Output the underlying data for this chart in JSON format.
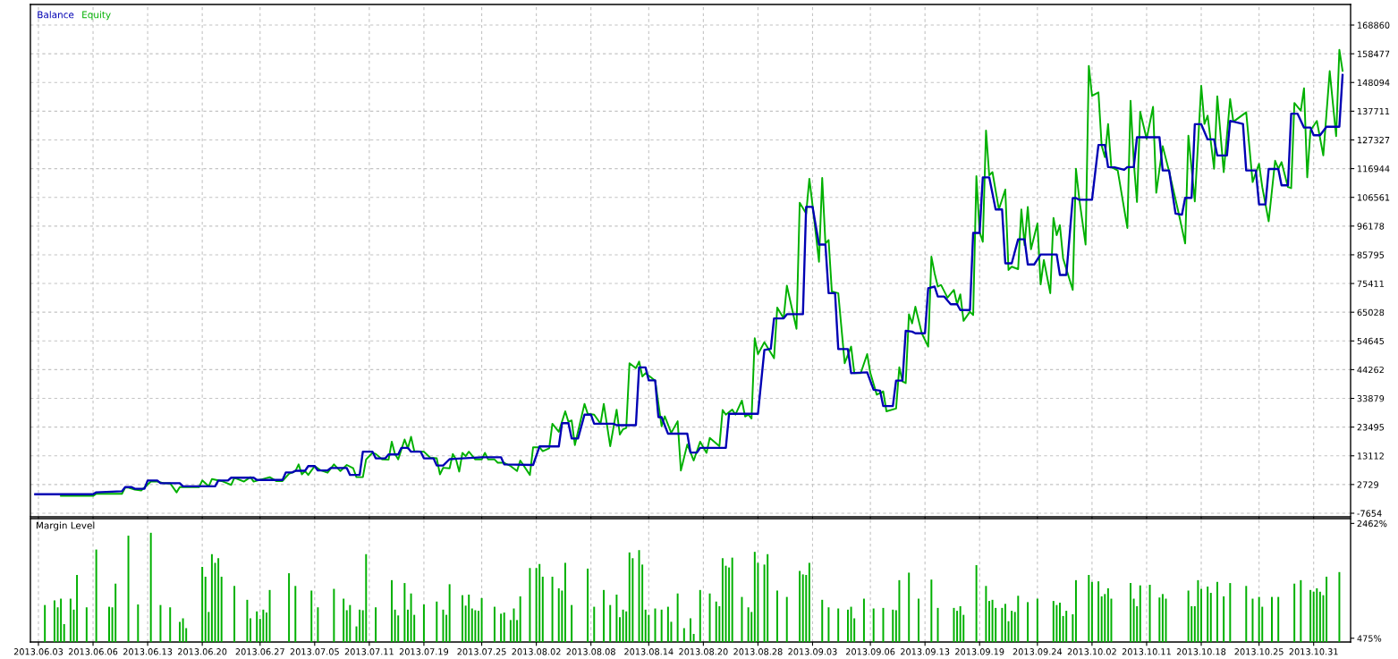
{
  "chart_data": [
    {
      "type": "line",
      "legend": "top left",
      "grid": true,
      "tick_labels": "y",
      "categories": [
        null,
        null,
        "2013.06.03",
        null,
        null,
        null,
        null,
        null,
        null,
        null,
        null,
        null,
        null,
        null,
        null,
        null,
        null,
        null,
        null,
        "2013.06.06",
        null,
        null,
        null,
        null,
        null,
        null,
        null,
        null,
        null,
        null,
        null,
        null,
        null,
        null,
        null,
        null,
        "2013.06.13",
        null,
        null,
        null,
        null,
        null,
        null,
        null,
        null,
        null,
        null,
        null,
        null,
        null,
        null,
        null,
        null,
        "2013.06.20",
        null,
        null,
        null,
        null,
        null,
        null,
        null,
        null,
        null,
        null,
        null,
        null,
        null,
        null,
        null,
        null,
        null,
        "2013.06.27",
        null,
        null,
        null,
        null,
        null,
        null,
        null,
        null,
        null,
        null,
        null,
        null,
        null,
        null,
        null,
        null,
        "2013.07.05",
        null,
        null,
        null,
        null,
        null,
        null,
        null,
        null,
        null,
        null,
        null,
        null,
        null,
        null,
        null,
        null,
        "2013.07.11",
        null,
        null,
        null,
        null,
        null,
        null,
        null,
        null,
        null,
        null,
        null,
        null,
        null,
        null,
        null,
        null,
        "2013.07.19",
        null,
        null,
        null,
        null,
        null,
        null,
        null,
        null,
        null,
        null,
        null,
        null,
        null,
        null,
        null,
        null,
        null,
        "2013.07.25",
        null,
        null,
        null,
        null,
        null,
        null,
        null,
        null,
        null,
        null,
        null,
        null,
        null,
        null,
        null,
        null,
        "2013.08.02",
        null,
        null,
        null,
        null,
        null,
        null,
        null,
        null,
        null,
        null,
        null,
        null,
        null,
        null,
        null,
        null,
        "2013.08.08",
        null,
        null,
        null,
        null,
        null,
        null,
        null,
        null,
        null,
        null,
        null,
        null,
        null,
        null,
        null,
        null,
        null,
        "2013.08.14",
        null,
        null,
        null,
        null,
        null,
        null,
        null,
        null,
        null,
        null,
        null,
        null,
        null,
        null,
        null,
        null,
        "2013.08.20",
        null,
        null,
        null,
        null,
        null,
        null,
        null,
        null,
        null,
        null,
        null,
        null,
        null,
        null,
        null,
        null,
        "2013.08.28",
        null,
        null,
        null,
        null,
        null,
        null,
        null,
        null,
        null,
        null,
        null,
        null,
        null,
        null,
        null,
        null,
        "2013.09.03",
        null,
        null,
        null,
        null,
        null,
        null,
        null,
        null,
        null,
        null,
        null,
        null,
        null,
        null,
        null,
        null,
        null,
        "2013.09.06",
        null,
        null,
        null,
        null,
        null,
        null,
        null,
        null,
        null,
        null,
        null,
        null,
        null,
        null,
        null,
        null,
        "2013.09.13",
        null,
        null,
        null,
        null,
        null,
        null,
        null,
        null,
        null,
        null,
        null,
        null,
        null,
        null,
        null,
        null,
        "2013.09.19",
        null,
        null,
        null,
        null,
        null,
        null,
        null,
        null,
        null,
        null,
        null,
        null,
        null,
        null,
        null,
        null,
        null,
        "2013.09.24",
        null,
        null,
        null,
        null,
        null,
        null,
        null,
        null,
        null,
        null,
        null,
        null,
        null,
        null,
        null,
        null,
        "2013.10.02",
        null,
        null,
        null,
        null,
        null,
        null,
        null,
        null,
        null,
        null,
        null,
        null,
        null,
        null,
        null,
        null,
        "2013.10.11",
        null,
        null,
        null,
        null,
        null,
        null,
        null,
        null,
        null,
        null,
        null,
        null,
        null,
        null,
        null,
        null,
        "2013.10.18",
        null,
        null,
        null,
        null,
        null,
        null,
        null,
        null,
        null,
        null,
        null,
        null,
        null,
        null,
        null,
        null,
        null,
        "2013.10.25",
        null,
        null,
        null,
        null,
        null,
        null,
        null,
        null,
        null,
        null,
        null,
        null,
        null,
        null,
        null,
        null,
        "2013.10.31",
        null,
        null,
        null,
        null,
        null,
        null,
        null,
        null,
        null,
        null,
        null
      ],
      "ylim": [
        -8950,
        176300
      ],
      "yticks": [
        -7654,
        2729,
        13112,
        23495,
        33879,
        44262,
        54645,
        65028,
        75411,
        85795,
        96178,
        106561,
        116944,
        127327,
        137711,
        148094,
        158477,
        168860
      ],
      "series": [
        {
          "name": "Balance",
          "color": "#0000b4",
          "values": [
            null,
            -800,
            null,
            null,
            null,
            null,
            null,
            null,
            null,
            null,
            null,
            null,
            null,
            null,
            null,
            null,
            null,
            null,
            null,
            -800,
            -100,
            null,
            null,
            null,
            null,
            null,
            null,
            null,
            300,
            1800,
            null,
            1800,
            1200,
            null,
            null,
            1200,
            4200,
            null,
            null,
            4200,
            3200,
            null,
            null,
            null,
            null,
            null,
            3200,
            2100,
            null,
            null,
            null,
            null,
            null,
            null,
            null,
            null,
            null,
            2100,
            4200,
            null,
            null,
            4200,
            5200,
            null,
            null,
            null,
            null,
            null,
            null,
            5200,
            4400,
            null,
            null,
            null,
            null,
            null,
            null,
            null,
            4400,
            7100,
            null,
            7100,
            7700,
            null,
            null,
            7700,
            9400,
            null,
            9400,
            7800,
            null,
            null,
            7800,
            8700,
            null,
            null,
            null,
            null,
            8700,
            6200,
            null,
            null,
            6200,
            14600,
            null,
            null,
            14600,
            12200,
            null,
            null,
            12200,
            13600,
            null,
            null,
            13600,
            16000,
            null,
            16000,
            14600,
            null,
            null,
            14600,
            12200,
            null,
            null,
            12200,
            9600,
            null,
            9600,
            null,
            11900,
            null,
            null,
            null,
            null,
            null,
            null,
            null,
            null,
            null,
            12600,
            null,
            null,
            null,
            null,
            null,
            12600,
            10000,
            null,
            null,
            null,
            null,
            null,
            null,
            null,
            null,
            9800,
            null,
            16500,
            null,
            null,
            null,
            null,
            null,
            16500,
            24900,
            null,
            24900,
            19400,
            null,
            19400,
            null,
            28000,
            null,
            28000,
            24700,
            null,
            null,
            null,
            null,
            null,
            24700,
            24200,
            null,
            null,
            null,
            null,
            null,
            24200,
            45100,
            null,
            45100,
            40400,
            null,
            40400,
            27100,
            27100,
            null,
            21100,
            null,
            null,
            null,
            null,
            null,
            21100,
            14300,
            null,
            14300,
            16000,
            null,
            null,
            null,
            null,
            null,
            null,
            null,
            16000,
            28300,
            null,
            null,
            null,
            null,
            null,
            null,
            null,
            null,
            28300,
            null,
            51400,
            null,
            51800,
            62800,
            null,
            null,
            62800,
            64300,
            null,
            null,
            null,
            null,
            64300,
            103100,
            null,
            103100,
            null,
            89500,
            null,
            89500,
            71900,
            null,
            71900,
            51700,
            null,
            null,
            51700,
            43000,
            null,
            null,
            null,
            null,
            43300,
            null,
            37000,
            null,
            36700,
            31100,
            null,
            null,
            31100,
            40300,
            null,
            40300,
            58300,
            null,
            58000,
            57400,
            null,
            null,
            57400,
            73700,
            null,
            74300,
            70700,
            null,
            70700,
            null,
            67900,
            null,
            67900,
            65800,
            null,
            null,
            65800,
            93700,
            null,
            93700,
            113800,
            null,
            113800,
            null,
            102200,
            null,
            102200,
            82700,
            null,
            82700,
            null,
            91400,
            null,
            91400,
            82300,
            null,
            82300,
            null,
            85900,
            null,
            null,
            null,
            null,
            85900,
            78500,
            null,
            78500,
            null,
            106300,
            106300,
            105700,
            null,
            null,
            null,
            105700,
            null,
            125500,
            null,
            125500,
            117500,
            null,
            117400,
            null,
            null,
            116500,
            117500,
            null,
            117500,
            128300,
            null,
            null,
            null,
            null,
            null,
            null,
            128300,
            116300,
            null,
            116300,
            null,
            100700,
            null,
            100300,
            106400,
            null,
            106400,
            133000,
            null,
            133000,
            null,
            127500,
            null,
            127500,
            121700,
            null,
            null,
            121700,
            134200,
            null,
            null,
            null,
            133100,
            116300,
            null,
            null,
            116300,
            104000,
            null,
            104000,
            116800,
            null,
            null,
            116800,
            110900,
            null,
            110900,
            136800,
            null,
            136800,
            null,
            131800,
            null,
            131800,
            129000,
            null,
            129000,
            null,
            132100,
            null,
            null,
            null,
            132100,
            150800,
            null,
            null
          ]
        },
        {
          "name": "Equity",
          "color": "#00b000",
          "values": [
            null,
            null,
            null,
            null,
            null,
            null,
            null,
            null,
            null,
            -1400,
            null,
            null,
            null,
            null,
            null,
            null,
            null,
            null,
            null,
            -1400,
            -600,
            null,
            null,
            null,
            null,
            null,
            null,
            null,
            -600,
            1600,
            1600,
            null,
            900,
            null,
            600,
            null,
            null,
            3800,
            null,
            3800,
            null,
            3200,
            null,
            3200,
            null,
            -100,
            1800,
            null,
            null,
            null,
            null,
            null,
            1800,
            4200,
            null,
            2100,
            4700,
            null,
            null,
            4000,
            null,
            null,
            2600,
            5200,
            null,
            null,
            3800,
            null,
            5400,
            3800,
            null,
            null,
            null,
            null,
            5400,
            null,
            4000,
            null,
            4000,
            null,
            6600,
            null,
            7600,
            10000,
            6400,
            7600,
            6200,
            null,
            9400,
            null,
            7800,
            null,
            7000,
            null,
            10000,
            null,
            7600,
            null,
            9800,
            null,
            8600,
            5400,
            null,
            5400,
            11800,
            null,
            14200,
            13800,
            null,
            11800,
            null,
            11700,
            18200,
            13800,
            11800,
            null,
            19000,
            15800,
            20000,
            14800,
            null,
            null,
            14600,
            null,
            12400,
            null,
            12200,
            6400,
            8800,
            null,
            8600,
            13800,
            11800,
            7400,
            14200,
            13000,
            14600,
            null,
            11800,
            null,
            11800,
            14200,
            11800,
            null,
            11800,
            10600,
            null,
            10600,
            null,
            9400,
            null,
            7600,
            11400,
            null,
            null,
            6200,
            16200,
            null,
            16200,
            14800,
            null,
            15800,
            24700,
            null,
            21800,
            null,
            29200,
            25400,
            25900,
            17000,
            null,
            null,
            31900,
            28300,
            null,
            28000,
            null,
            24700,
            31900,
            null,
            16600,
            null,
            29800,
            20800,
            22700,
            23200,
            46600,
            null,
            44800,
            47200,
            41800,
            43000,
            null,
            null,
            40300,
            null,
            23800,
            27400,
            null,
            21400,
            null,
            25600,
            7800,
            null,
            17200,
            null,
            11400,
            null,
            18200,
            null,
            14200,
            19600,
            null,
            null,
            16600,
            29700,
            28000,
            null,
            29800,
            28000,
            null,
            33100,
            27300,
            28000,
            26600,
            55600,
            49900,
            null,
            54200,
            null,
            null,
            48400,
            66700,
            null,
            62800,
            74600,
            null,
            null,
            59000,
            104600,
            null,
            100700,
            113300,
            103700,
            null,
            83300,
            113600,
            89900,
            91100,
            72500,
            null,
            71900,
            null,
            46600,
            null,
            52600,
            43000,
            null,
            43000,
            null,
            49900,
            43000,
            null,
            35200,
            null,
            36400,
            29200,
            null,
            null,
            30200,
            45100,
            40000,
            39400,
            64300,
            61000,
            67000,
            null,
            57400,
            null,
            52600,
            85100,
            79100,
            74300,
            74900,
            null,
            70300,
            null,
            73100,
            67900,
            71500,
            61900,
            null,
            65200,
            64000,
            114200,
            94100,
            90500,
            130700,
            114500,
            115700,
            null,
            102200,
            null,
            109400,
            80300,
            81500,
            null,
            80600,
            102200,
            89300,
            103100,
            87800,
            null,
            97100,
            75100,
            83900,
            null,
            71900,
            99100,
            92900,
            96500,
            84500,
            null,
            null,
            73100,
            116900,
            106300,
            null,
            89500,
            154100,
            143300,
            null,
            144500,
            125300,
            121100,
            133100,
            117500,
            null,
            116300,
            null,
            null,
            95500,
            141500,
            119300,
            104900,
            137500,
            null,
            127700,
            null,
            139300,
            108200,
            null,
            125100,
            null,
            115900,
            null,
            null,
            100700,
            null,
            89900,
            128900,
            null,
            105100,
            null,
            146900,
            133100,
            136100,
            null,
            116900,
            143100,
            null,
            115700,
            null,
            142100,
            133900,
            null,
            null,
            null,
            137300,
            null,
            112100,
            null,
            118700,
            110300,
            null,
            97900,
            null,
            119800,
            116900,
            119300,
            null,
            110300,
            109900,
            140700,
            null,
            137900,
            146000,
            113800,
            130700,
            null,
            134200,
            null,
            121700,
            null,
            152200,
            null,
            128700,
            159900,
            152300,
            null,
            null
          ]
        }
      ]
    },
    {
      "type": "bar",
      "title": "Margin Level",
      "grid": "x",
      "categories": [
        null,
        null,
        "2013.06.03",
        null,
        null,
        null,
        null,
        null,
        null,
        null,
        null,
        null,
        null,
        null,
        null,
        null,
        null,
        null,
        null,
        "2013.06.06",
        null,
        null,
        null,
        null,
        null,
        null,
        null,
        null,
        null,
        null,
        null,
        null,
        null,
        null,
        null,
        null,
        "2013.06.13",
        null,
        null,
        null,
        null,
        null,
        null,
        null,
        null,
        null,
        null,
        null,
        null,
        null,
        null,
        null,
        null,
        "2013.06.20",
        null,
        null,
        null,
        null,
        null,
        null,
        null,
        null,
        null,
        null,
        null,
        null,
        null,
        null,
        null,
        null,
        null,
        "2013.06.27",
        null,
        null,
        null,
        null,
        null,
        null,
        null,
        null,
        null,
        null,
        null,
        null,
        null,
        null,
        null,
        null,
        "2013.07.05",
        null,
        null,
        null,
        null,
        null,
        null,
        null,
        null,
        null,
        null,
        null,
        null,
        null,
        null,
        null,
        null,
        "2013.07.11",
        null,
        null,
        null,
        null,
        null,
        null,
        null,
        null,
        null,
        null,
        null,
        null,
        null,
        null,
        null,
        null,
        "2013.07.19",
        null,
        null,
        null,
        null,
        null,
        null,
        null,
        null,
        null,
        null,
        null,
        null,
        null,
        null,
        null,
        null,
        null,
        "2013.07.25",
        null,
        null,
        null,
        null,
        null,
        null,
        null,
        null,
        null,
        null,
        null,
        null,
        null,
        null,
        null,
        null,
        "2013.08.02",
        null,
        null,
        null,
        null,
        null,
        null,
        null,
        null,
        null,
        null,
        null,
        null,
        null,
        null,
        null,
        null,
        "2013.08.08",
        null,
        null,
        null,
        null,
        null,
        null,
        null,
        null,
        null,
        null,
        null,
        null,
        null,
        null,
        null,
        null,
        null,
        "2013.08.14",
        null,
        null,
        null,
        null,
        null,
        null,
        null,
        null,
        null,
        null,
        null,
        null,
        null,
        null,
        null,
        null,
        "2013.08.20",
        null,
        null,
        null,
        null,
        null,
        null,
        null,
        null,
        null,
        null,
        null,
        null,
        null,
        null,
        null,
        null,
        "2013.08.28",
        null,
        null,
        null,
        null,
        null,
        null,
        null,
        null,
        null,
        null,
        null,
        null,
        null,
        null,
        null,
        null,
        "2013.09.03",
        null,
        null,
        null,
        null,
        null,
        null,
        null,
        null,
        null,
        null,
        null,
        null,
        null,
        null,
        null,
        null,
        null,
        "2013.09.06",
        null,
        null,
        null,
        null,
        null,
        null,
        null,
        null,
        null,
        null,
        null,
        null,
        null,
        null,
        null,
        null,
        "2013.09.13",
        null,
        null,
        null,
        null,
        null,
        null,
        null,
        null,
        null,
        null,
        null,
        null,
        null,
        null,
        null,
        null,
        "2013.09.19",
        null,
        null,
        null,
        null,
        null,
        null,
        null,
        null,
        null,
        null,
        null,
        null,
        null,
        null,
        null,
        null,
        null,
        "2013.09.24",
        null,
        null,
        null,
        null,
        null,
        null,
        null,
        null,
        null,
        null,
        null,
        null,
        null,
        null,
        null,
        null,
        "2013.10.02",
        null,
        null,
        null,
        null,
        null,
        null,
        null,
        null,
        null,
        null,
        null,
        null,
        null,
        null,
        null,
        null,
        "2013.10.11",
        null,
        null,
        null,
        null,
        null,
        null,
        null,
        null,
        null,
        null,
        null,
        null,
        null,
        null,
        null,
        null,
        "2013.10.18",
        null,
        null,
        null,
        null,
        null,
        null,
        null,
        null,
        null,
        null,
        null,
        null,
        null,
        null,
        null,
        null,
        null,
        "2013.10.25",
        null,
        null,
        null,
        null,
        null,
        null,
        null,
        null,
        null,
        null,
        null,
        null,
        null,
        null,
        null,
        null,
        "2013.10.31",
        null,
        null,
        null,
        null,
        null,
        null,
        null,
        null,
        null,
        null,
        null
      ],
      "ylim": [
        410,
        2545
      ],
      "yticks": [
        {
          "value": 2462,
          "label": "2462%"
        },
        {
          "value": 475,
          "label": "475%"
        }
      ],
      "series": [
        {
          "color": "#00b000",
          "values": [
            null,
            null,
            null,
            null,
            1050,
            null,
            null,
            1130,
            1010,
            1160,
            720,
            null,
            1160,
            970,
            1570,
            null,
            null,
            1010,
            null,
            null,
            2010,
            null,
            null,
            null,
            1020,
            1010,
            1420,
            null,
            null,
            null,
            2250,
            null,
            null,
            1060,
            null,
            null,
            null,
            2300,
            null,
            null,
            1050,
            null,
            null,
            1010,
            null,
            null,
            760,
            820,
            650,
            null,
            null,
            null,
            null,
            1710,
            1540,
            930,
            1930,
            1780,
            1860,
            1540,
            null,
            null,
            null,
            1380,
            null,
            null,
            null,
            1140,
            820,
            null,
            940,
            810,
            970,
            920,
            1310,
            null,
            null,
            null,
            null,
            null,
            1600,
            null,
            1380,
            null,
            null,
            null,
            null,
            1300,
            null,
            1010,
            null,
            null,
            null,
            null,
            1330,
            null,
            null,
            1160,
            960,
            1050,
            null,
            680,
            970,
            960,
            1930,
            null,
            null,
            1010,
            null,
            null,
            null,
            null,
            1480,
            970,
            870,
            null,
            1430,
            970,
            1250,
            880,
            null,
            null,
            1060,
            null,
            null,
            null,
            1110,
            null,
            970,
            880,
            1410,
            null,
            null,
            null,
            1220,
            1040,
            1230,
            990,
            960,
            950,
            1170,
            null,
            null,
            null,
            1020,
            null,
            900,
            920,
            null,
            790,
            990,
            790,
            1200,
            null,
            null,
            1690,
            null,
            1690,
            1760,
            1540,
            null,
            null,
            1540,
            null,
            1340,
            1300,
            1780,
            null,
            1050,
            null,
            null,
            null,
            null,
            1680,
            null,
            1020,
            null,
            null,
            1310,
            null,
            1050,
            null,
            1230,
            840,
            970,
            940,
            1960,
            1860,
            null,
            2000,
            1750,
            970,
            880,
            null,
            990,
            null,
            970,
            null,
            1020,
            760,
            null,
            1250,
            null,
            650,
            null,
            820,
            550,
            null,
            1310,
            null,
            null,
            1250,
            null,
            1110,
            1030,
            1860,
            1730,
            1700,
            1870,
            null,
            null,
            1190,
            null,
            1010,
            930,
            1970,
            1780,
            null,
            1750,
            1930,
            null,
            null,
            1300,
            null,
            null,
            1190,
            null,
            null,
            null,
            1640,
            1580,
            1570,
            1780,
            null,
            null,
            null,
            1140,
            null,
            1010,
            null,
            null,
            990,
            null,
            null,
            970,
            1020,
            820,
            null,
            null,
            1160,
            null,
            null,
            990,
            null,
            null,
            1000,
            null,
            null,
            970,
            960,
            1480,
            null,
            null,
            1610,
            null,
            null,
            1160,
            null,
            null,
            null,
            1490,
            null,
            1000,
            null,
            null,
            null,
            null,
            1000,
            950,
            1030,
            880,
            null,
            null,
            null,
            1740,
            null,
            null,
            1380,
            1120,
            1140,
            1000,
            null,
            1000,
            1070,
            770,
            950,
            930,
            1210,
            null,
            null,
            1100,
            null,
            null,
            1160,
            null,
            null,
            null,
            null,
            1120,
            1050,
            1090,
            860,
            950,
            null,
            890,
            1480,
            null,
            null,
            null,
            1570,
            1450,
            null,
            1460,
            1200,
            1240,
            1340,
            1160,
            null,
            null,
            null,
            null,
            null,
            1430,
            1160,
            1030,
            1390,
            null,
            null,
            1400,
            null,
            null,
            1180,
            1240,
            1160,
            null,
            null,
            null,
            null,
            null,
            null,
            1300,
            1030,
            1030,
            1480,
            1330,
            null,
            1370,
            1260,
            null,
            1450,
            null,
            1200,
            null,
            1430,
            null,
            null,
            null,
            null,
            1380,
            null,
            1160,
            null,
            1190,
            1020,
            null,
            null,
            1190,
            null,
            1190,
            null,
            null,
            null,
            null,
            1420,
            null,
            1480,
            null,
            null,
            1310,
            1280,
            1340,
            1280,
            1220,
            1540,
            null,
            null,
            null,
            1620,
            null,
            null,
            null
          ]
        }
      ]
    }
  ]
}
